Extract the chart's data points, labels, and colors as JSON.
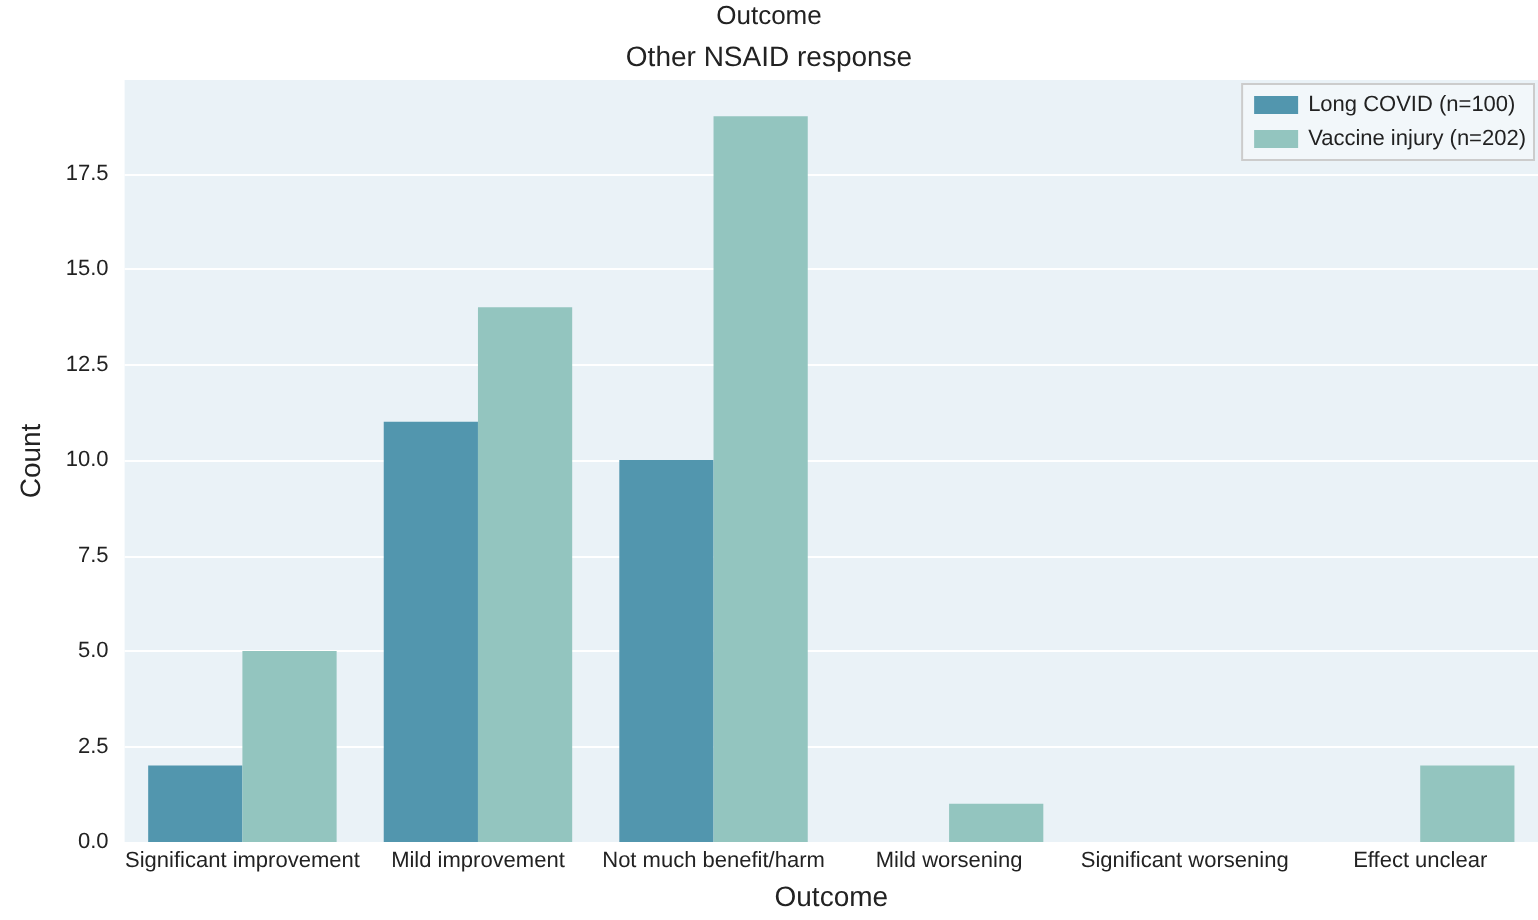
{
  "chart_data": {
    "type": "bar",
    "title": "Other NSAID response",
    "xlabel": "Outcome",
    "ylabel": "Count",
    "annotations": [
      "Outcome"
    ],
    "categories": [
      "Significant improvement",
      "Mild improvement",
      "Not much benefit/harm",
      "Mild worsening",
      "Significant worsening",
      "Effect unclear"
    ],
    "series": [
      {
        "name": "Long COVID (n=100)",
        "color": "#5296ae",
        "values": [
          2,
          11,
          10,
          0,
          0,
          0
        ]
      },
      {
        "name": "Vaccine injury (n=202)",
        "color": "#93c5bf",
        "values": [
          5,
          14,
          19,
          1,
          0,
          2
        ]
      }
    ],
    "ylim": [
      0,
      19.95
    ],
    "yticks": [
      {
        "value": 0,
        "label": "0.0"
      },
      {
        "value": 2.5,
        "label": "2.5"
      },
      {
        "value": 5,
        "label": "5.0"
      },
      {
        "value": 7.5,
        "label": "7.5"
      },
      {
        "value": 10,
        "label": "10.0"
      },
      {
        "value": 12.5,
        "label": "12.5"
      },
      {
        "value": 15,
        "label": "15.0"
      },
      {
        "value": 17.5,
        "label": "17.5"
      }
    ],
    "grid": "y",
    "legend": "top right"
  }
}
